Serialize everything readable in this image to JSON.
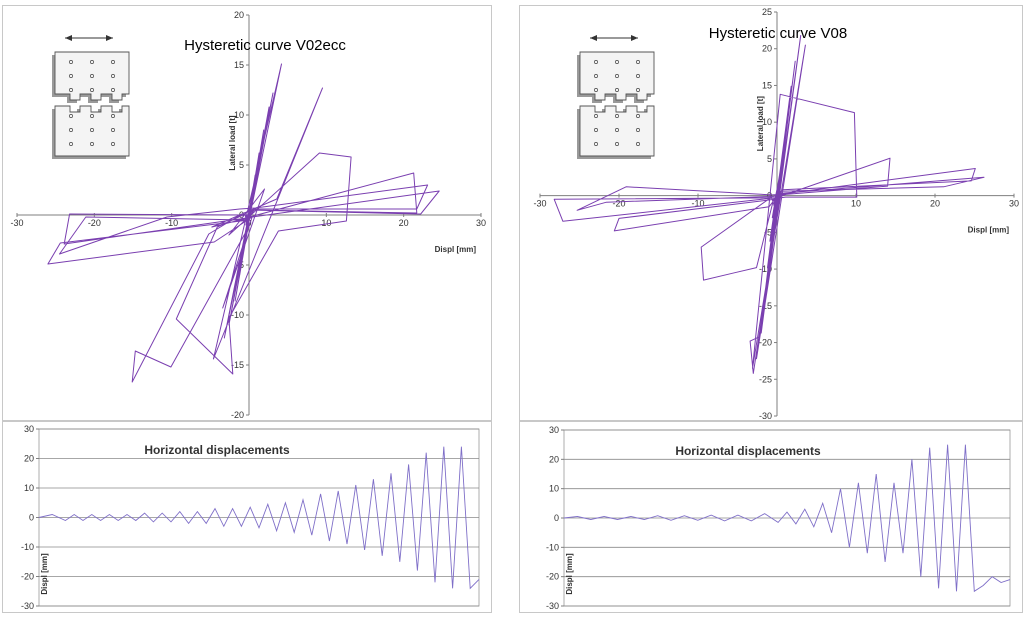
{
  "chart_data": [
    {
      "id": "hyst-left",
      "type": "line",
      "title": "Hysteretic curve V02ecc",
      "xlabel": "Displ [mm]",
      "ylabel": "Lateral load [t]",
      "xlim": [
        -30,
        30
      ],
      "ylim": [
        -20,
        20
      ],
      "xticks": [
        -30,
        -20,
        -10,
        0,
        10,
        20,
        30
      ],
      "yticks": [
        -20,
        -15,
        -10,
        -5,
        0,
        5,
        10,
        15,
        20
      ],
      "grid": false,
      "series": [
        {
          "color": "#7a3fb0",
          "x": [
            0,
            0.3,
            -0.4,
            0.6,
            -0.5,
            0.8,
            -0.8,
            1.3,
            -1.2,
            1.9,
            -1.8,
            2.6,
            -2.6,
            3.1,
            -3.2,
            4.2,
            -4.6,
            9.5,
            3.6,
            -4.8,
            0.4,
            -3.4,
            2.0,
            -2.6,
            9.1,
            13.2,
            12.6,
            3.8,
            -2.6,
            -2.1,
            -9.4,
            -4.1,
            -0.5,
            -0.2,
            -10.1,
            -14.7,
            -15.1,
            -5.2,
            -0.7,
            0.4,
            -0.4,
            21.3,
            21.7,
            0.7,
            -0.4,
            -21.1,
            -24.5,
            -10.6,
            -1.2,
            0.8,
            23.1,
            21.7,
            0.6,
            0,
            -24.4,
            -26,
            -4.5,
            0.4,
            24.6,
            22.2,
            0.1,
            -0.3,
            -23.9,
            -23.2,
            0
          ],
          "y": [
            0,
            1.2,
            -1.0,
            2.4,
            -2.1,
            4.0,
            -3.8,
            6.2,
            -6.0,
            8.5,
            -8.6,
            10.8,
            -11.0,
            12.2,
            -12.3,
            15.1,
            -14.4,
            12.7,
            1.6,
            -1.2,
            -0.2,
            -9.3,
            2.6,
            -2.0,
            6.2,
            5.8,
            -0.6,
            -1.6,
            -10.3,
            -15.9,
            -10.4,
            -1.2,
            0.1,
            -1.4,
            -15.2,
            -13.6,
            -16.7,
            -1.9,
            0.2,
            0.4,
            -0.3,
            4.2,
            0.2,
            0.5,
            -0.5,
            -0.2,
            -3.9,
            -0.2,
            0.6,
            0.7,
            3.0,
            0.6,
            0.6,
            -0.5,
            -2.8,
            -4.9,
            -2.7,
            -0.2,
            2.4,
            0.1,
            0.5,
            -0.3,
            -2.9,
            0.1,
            0
          ]
        }
      ]
    },
    {
      "id": "hyst-right",
      "type": "line",
      "title": "Hysteretic curve V08",
      "xlabel": "Displ [mm]",
      "ylabel": "Lateral load [t]",
      "xlim": [
        -30,
        30
      ],
      "ylim": [
        -30,
        25
      ],
      "xticks": [
        -30,
        -20,
        -10,
        0,
        10,
        20,
        30
      ],
      "yticks": [
        -30,
        -25,
        -20,
        -15,
        -10,
        -5,
        0,
        5,
        10,
        15,
        20,
        25
      ],
      "grid": false,
      "series": [
        {
          "color": "#7a3fb0",
          "x": [
            0,
            0.3,
            -0.4,
            0.5,
            -0.6,
            0.9,
            -0.9,
            1.3,
            -1.2,
            1.8,
            -1.6,
            2.3,
            -2.0,
            3.0,
            -2.6,
            3.6,
            -3.1,
            0.4,
            9.8,
            10.1,
            1.1,
            -0.4,
            -2.6,
            -5.4,
            -9.3,
            -9.6,
            -0.7,
            -0.2,
            -2.2,
            -3.4,
            -3.0,
            0.4,
            14.3,
            14.0,
            0.3,
            -0.4,
            -21.6,
            -25.3,
            -19.1,
            -0.6,
            0.5,
            25.1,
            24.6,
            0.7,
            -0.3,
            -20.0,
            -20.6,
            -1.0,
            0.3,
            26.2,
            21.1,
            0.5,
            -0.2,
            -28.2,
            -27.1,
            -0.2,
            0
          ],
          "y": [
            0,
            1.5,
            -1.3,
            3.5,
            -3.0,
            6.5,
            -6.2,
            10.1,
            -9.8,
            14.9,
            -14.5,
            18.3,
            -18.7,
            21.8,
            -22.2,
            20.5,
            -23.5,
            13.8,
            11.3,
            -0.2,
            -0.2,
            -0.4,
            -9.8,
            -10.5,
            -11.5,
            -7.0,
            -0.2,
            -1.9,
            -19.2,
            -19.8,
            -24.2,
            -0.1,
            5.1,
            1.3,
            0.1,
            -0.1,
            -0.9,
            -2.0,
            1.2,
            0.1,
            0.2,
            3.7,
            2.0,
            0.8,
            -0.5,
            -3.1,
            -4.8,
            -1.5,
            0.3,
            2.5,
            1.2,
            0.6,
            -0.3,
            -0.5,
            -3.5,
            -0.3,
            0
          ]
        }
      ]
    },
    {
      "id": "disp-left",
      "type": "line",
      "title": "Horizontal displacements",
      "ylabel": "Displ [mm]",
      "ylim": [
        -30,
        30
      ],
      "yticks": [
        -30,
        -20,
        -10,
        0,
        10,
        20,
        30
      ],
      "grid": true,
      "series": [
        {
          "color": "#7f6fc8",
          "x": [
            0,
            3,
            6,
            8,
            10,
            12,
            14,
            16,
            18,
            20,
            22,
            24,
            26,
            28,
            30,
            32,
            34,
            36,
            38,
            40,
            42,
            44,
            46,
            48,
            50,
            52,
            54,
            56,
            58,
            60,
            62,
            64,
            66,
            68,
            70,
            72,
            74,
            76,
            78,
            80,
            82,
            84,
            86,
            88,
            90,
            92,
            94,
            96,
            98,
            100
          ],
          "y": [
            0,
            1,
            -1,
            1,
            -1,
            1,
            -1,
            1,
            -1,
            1,
            -1,
            1.5,
            -1.5,
            1.5,
            -1.5,
            2,
            -2,
            2,
            -2,
            3,
            -3,
            3,
            -3,
            3.5,
            -3.5,
            4.5,
            -4.5,
            5,
            -5,
            6,
            -6,
            8,
            -8,
            9,
            -9,
            11,
            -11,
            13,
            -13,
            15,
            -15,
            18,
            -18,
            22,
            -22,
            24,
            -24,
            24,
            -24,
            -21
          ]
        }
      ]
    },
    {
      "id": "disp-right",
      "type": "line",
      "title": "Horizontal displacements",
      "ylabel": "Displ [mm]",
      "ylim": [
        -30,
        30
      ],
      "yticks": [
        -30,
        -20,
        -10,
        0,
        10,
        20,
        30
      ],
      "grid": true,
      "series": [
        {
          "color": "#7f6fc8",
          "x": [
            0,
            3,
            6,
            9,
            12,
            15,
            18,
            21,
            24,
            27,
            30,
            33,
            36,
            39,
            42,
            45,
            48,
            50,
            52,
            54,
            56,
            58,
            60,
            62,
            64,
            66,
            68,
            70,
            72,
            74,
            76,
            78,
            80,
            82,
            84,
            86,
            88,
            90,
            92,
            94,
            96,
            98,
            100
          ],
          "y": [
            0,
            0.5,
            -0.5,
            0.5,
            -0.5,
            0.5,
            -0.5,
            0.8,
            -0.8,
            0.8,
            -0.8,
            1,
            -1,
            1,
            -1,
            1.5,
            -1.5,
            2,
            -2,
            3,
            -3,
            5,
            -5,
            10,
            -10,
            12,
            -12,
            15,
            -15,
            12,
            -12,
            20,
            -20,
            24,
            -24,
            25,
            -25,
            25,
            -25,
            -23,
            -20,
            -22,
            -21
          ]
        }
      ]
    }
  ],
  "labels": {
    "left_title": "Hysteretic curve V02ecc",
    "right_title": "Hysteretic curve V08",
    "xlabel": "Displ [mm]",
    "ylabel": "Lateral load [t]",
    "disp_title": "Horizontal displacements",
    "disp_ylabel": "Displ [mm]"
  }
}
